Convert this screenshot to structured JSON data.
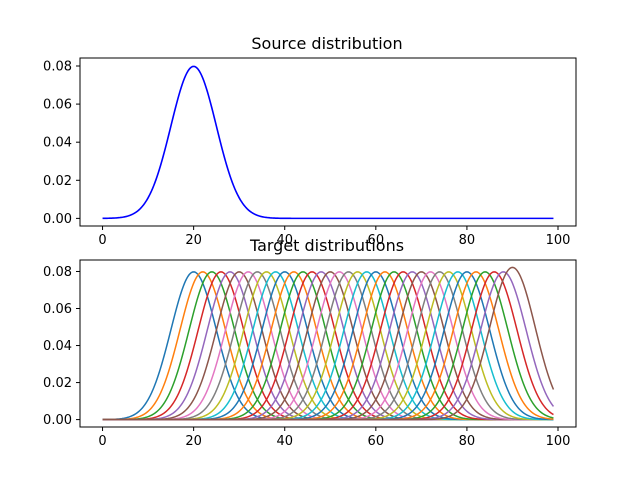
{
  "chart_data": [
    {
      "type": "line",
      "title": "Source distribution",
      "xlim": [
        -4.95,
        103.95
      ],
      "ylim": [
        -0.004,
        0.0842
      ],
      "xticks": [
        0,
        20,
        40,
        60,
        80,
        100
      ],
      "yticks": [
        0.0,
        0.02,
        0.04,
        0.06,
        0.08
      ],
      "xtick_labels": [
        "0",
        "20",
        "40",
        "60",
        "80",
        "100"
      ],
      "ytick_labels": [
        "0.00",
        "0.02",
        "0.04",
        "0.06",
        "0.08"
      ],
      "x_range": [
        0,
        99
      ],
      "series": [
        {
          "color": "#0000ff",
          "mean": 20,
          "std": 5,
          "peak": 0.0798
        }
      ]
    },
    {
      "type": "line",
      "title": "Target distributions",
      "xlim": [
        -4.95,
        103.95
      ],
      "ylim": [
        -0.004,
        0.0862
      ],
      "xticks": [
        0,
        20,
        40,
        60,
        80,
        100
      ],
      "yticks": [
        0.0,
        0.02,
        0.04,
        0.06,
        0.08
      ],
      "xtick_labels": [
        "0",
        "20",
        "40",
        "60",
        "80",
        "100"
      ],
      "ytick_labels": [
        "0.00",
        "0.02",
        "0.04",
        "0.06",
        "0.08"
      ],
      "x_range": [
        0,
        99
      ],
      "std": 5,
      "peak": 0.0798,
      "last_peak": 0.0822,
      "means": [
        20,
        22,
        24,
        26,
        28,
        30,
        32,
        34,
        36,
        38,
        40,
        42,
        44,
        46,
        48,
        50,
        52,
        54,
        56,
        58,
        60,
        62,
        64,
        66,
        68,
        70,
        72,
        74,
        76,
        78,
        80,
        82,
        84,
        86,
        88,
        90
      ],
      "colors": [
        "#1f77b4",
        "#ff7f0e",
        "#2ca02c",
        "#d62728",
        "#9467bd",
        "#8c564b",
        "#e377c2",
        "#7f7f7f",
        "#bcbd22",
        "#17becf"
      ]
    }
  ]
}
